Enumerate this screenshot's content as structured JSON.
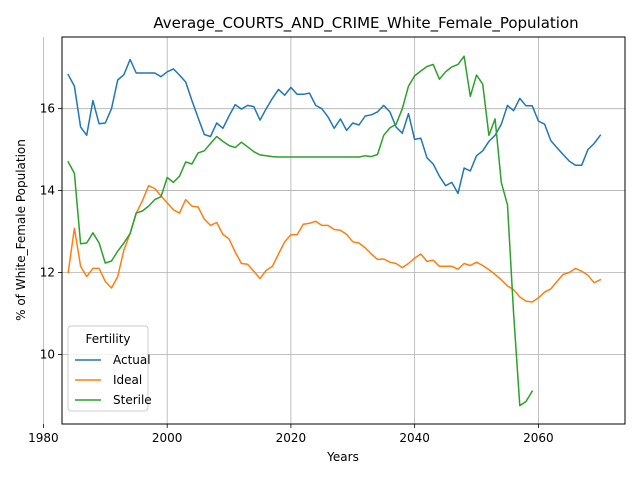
{
  "chart_data": {
    "type": "line",
    "title": "Average_COURTS_AND_CRIME_White_Female_Population",
    "xlabel": "Years",
    "ylabel": "% of White_Female Population",
    "xlim": [
      1983,
      2074
    ],
    "ylim": [
      8.3,
      17.75
    ],
    "x_ticks": [
      1980,
      2000,
      2020,
      2040,
      2060
    ],
    "y_ticks": [
      10,
      12,
      14,
      16
    ],
    "grid": true,
    "legend": {
      "title": "Fertility",
      "placement": "lower-left"
    },
    "series": [
      {
        "name": "Actual",
        "color": "#1f77b4",
        "x": [
          1984,
          1985,
          1986,
          1987,
          1988,
          1989,
          1990,
          1991,
          1992,
          1993,
          1994,
          1995,
          1996,
          1997,
          1998,
          1999,
          2000,
          2001,
          2002,
          2003,
          2004,
          2005,
          2006,
          2007,
          2008,
          2009,
          2010,
          2011,
          2012,
          2013,
          2014,
          2015,
          2016,
          2017,
          2018,
          2019,
          2020,
          2021,
          2022,
          2023,
          2024,
          2025,
          2026,
          2027,
          2028,
          2029,
          2030,
          2031,
          2032,
          2033,
          2034,
          2035,
          2036,
          2037,
          2038,
          2039,
          2040,
          2041,
          2042,
          2043,
          2044,
          2045,
          2046,
          2047,
          2048,
          2049,
          2050,
          2051,
          2052,
          2053,
          2054,
          2055,
          2056,
          2057,
          2058,
          2059,
          2060,
          2061,
          2062,
          2063,
          2064,
          2065,
          2066,
          2067,
          2068,
          2069,
          2070
        ],
        "values": [
          16.83,
          16.55,
          15.55,
          15.35,
          16.2,
          15.63,
          15.65,
          16.0,
          16.7,
          16.83,
          17.2,
          16.87,
          16.87,
          16.87,
          16.87,
          16.78,
          16.9,
          16.97,
          16.82,
          16.65,
          16.2,
          15.78,
          15.37,
          15.32,
          15.65,
          15.52,
          15.82,
          16.1,
          15.99,
          16.08,
          16.05,
          15.72,
          16.0,
          16.25,
          16.47,
          16.33,
          16.52,
          16.35,
          16.35,
          16.38,
          16.08,
          16.0,
          15.8,
          15.52,
          15.75,
          15.47,
          15.65,
          15.6,
          15.82,
          15.85,
          15.92,
          16.08,
          15.92,
          15.55,
          15.4,
          15.88,
          15.25,
          15.28,
          14.8,
          14.65,
          14.35,
          14.12,
          14.2,
          13.93,
          14.55,
          14.48,
          14.85,
          14.97,
          15.2,
          15.35,
          15.62,
          16.08,
          15.95,
          16.25,
          16.07,
          16.07,
          15.7,
          15.62,
          15.22,
          15.05,
          14.88,
          14.72,
          14.62,
          14.62,
          15.0,
          15.15,
          15.35
        ]
      },
      {
        "name": "Ideal",
        "color": "#ff7f0e",
        "x": [
          1984,
          1985,
          1986,
          1987,
          1988,
          1989,
          1990,
          1991,
          1992,
          1993,
          1994,
          1995,
          1996,
          1997,
          1998,
          1999,
          2000,
          2001,
          2002,
          2003,
          2004,
          2005,
          2006,
          2007,
          2008,
          2009,
          2010,
          2011,
          2012,
          2013,
          2014,
          2015,
          2016,
          2017,
          2018,
          2019,
          2020,
          2021,
          2022,
          2023,
          2024,
          2025,
          2026,
          2027,
          2028,
          2029,
          2030,
          2031,
          2032,
          2033,
          2034,
          2035,
          2036,
          2037,
          2038,
          2039,
          2040,
          2041,
          2042,
          2043,
          2044,
          2045,
          2046,
          2047,
          2048,
          2049,
          2050,
          2051,
          2052,
          2053,
          2054,
          2055,
          2056,
          2057,
          2058,
          2059,
          2060,
          2061,
          2062,
          2063,
          2064,
          2065,
          2066,
          2067,
          2068,
          2069,
          2070
        ],
        "values": [
          12.0,
          13.08,
          12.15,
          11.9,
          12.1,
          12.1,
          11.78,
          11.62,
          11.9,
          12.55,
          12.95,
          13.45,
          13.75,
          14.12,
          14.05,
          13.87,
          13.7,
          13.53,
          13.45,
          13.78,
          13.62,
          13.6,
          13.3,
          13.15,
          13.22,
          12.93,
          12.82,
          12.5,
          12.22,
          12.2,
          12.03,
          11.85,
          12.05,
          12.15,
          12.45,
          12.75,
          12.92,
          12.92,
          13.18,
          13.2,
          13.25,
          13.15,
          13.15,
          13.05,
          13.03,
          12.93,
          12.75,
          12.72,
          12.6,
          12.45,
          12.32,
          12.33,
          12.25,
          12.22,
          12.12,
          12.22,
          12.35,
          12.45,
          12.27,
          12.3,
          12.15,
          12.15,
          12.15,
          12.08,
          12.22,
          12.17,
          12.25,
          12.17,
          12.07,
          11.95,
          11.82,
          11.67,
          11.58,
          11.4,
          11.3,
          11.28,
          11.38,
          11.52,
          11.6,
          11.78,
          11.95,
          12.0,
          12.1,
          12.03,
          11.93,
          11.75,
          11.82
        ]
      },
      {
        "name": "Sterile",
        "color": "#2ca02c",
        "x": [
          1984,
          1985,
          1986,
          1987,
          1988,
          1989,
          1990,
          1991,
          1992,
          1993,
          1994,
          1995,
          1996,
          1997,
          1998,
          1999,
          2000,
          2001,
          2002,
          2003,
          2004,
          2005,
          2006,
          2007,
          2008,
          2009,
          2010,
          2011,
          2012,
          2013,
          2014,
          2015,
          2016,
          2017,
          2018,
          2019,
          2020,
          2021,
          2022,
          2023,
          2024,
          2025,
          2026,
          2027,
          2028,
          2029,
          2030,
          2031,
          2032,
          2033,
          2034,
          2035,
          2036,
          2037,
          2038,
          2039,
          2040,
          2041,
          2042,
          2043,
          2044,
          2045,
          2046,
          2047,
          2048,
          2049,
          2050,
          2051,
          2052,
          2053,
          2054,
          2055,
          2056,
          2057,
          2058,
          2059
        ],
        "values": [
          14.7,
          14.42,
          12.7,
          12.72,
          12.97,
          12.72,
          12.23,
          12.28,
          12.52,
          12.72,
          12.95,
          13.45,
          13.5,
          13.62,
          13.78,
          13.85,
          14.32,
          14.2,
          14.35,
          14.7,
          14.65,
          14.92,
          14.97,
          15.15,
          15.32,
          15.2,
          15.1,
          15.05,
          15.18,
          15.07,
          14.95,
          14.87,
          14.85,
          14.83,
          14.82,
          14.82,
          14.82,
          14.82,
          14.82,
          14.82,
          14.82,
          14.82,
          14.82,
          14.82,
          14.82,
          14.82,
          14.82,
          14.82,
          14.85,
          14.83,
          14.88,
          15.35,
          15.53,
          15.62,
          16.0,
          16.55,
          16.8,
          16.92,
          17.03,
          17.08,
          16.72,
          16.9,
          17.02,
          17.08,
          17.28,
          16.3,
          16.82,
          16.6,
          15.35,
          15.75,
          14.2,
          13.65,
          11.0,
          8.75,
          8.85,
          9.1
        ]
      }
    ]
  }
}
